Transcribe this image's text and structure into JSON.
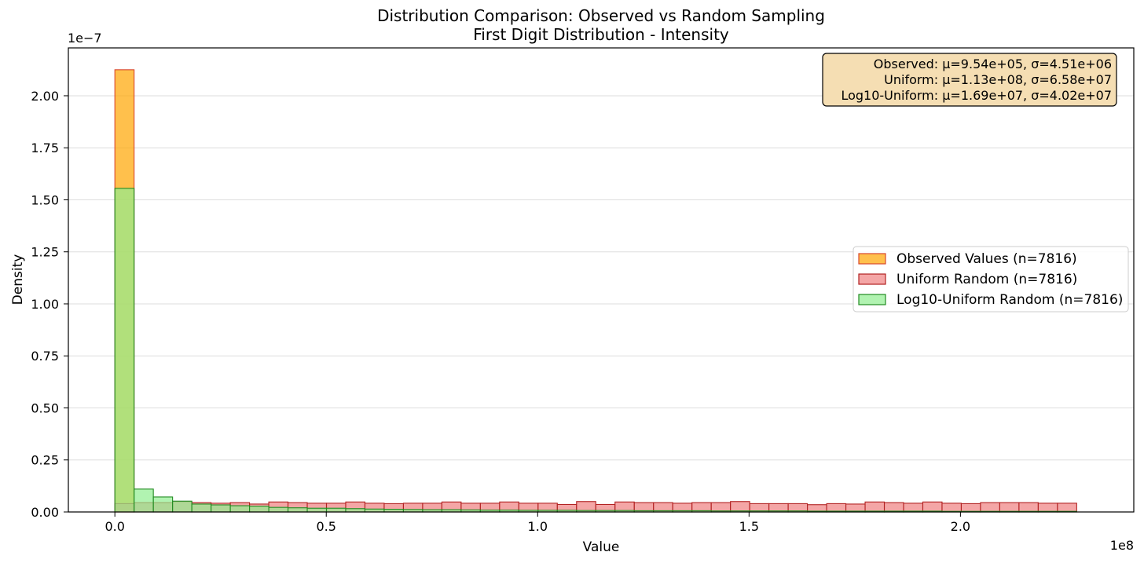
{
  "chart_data": {
    "type": "histogram",
    "title": "Distribution Comparison: Observed vs Random Sampling",
    "subtitle": "First Digit Distribution - Intensity",
    "xlabel": "Value",
    "ylabel": "Density",
    "x_offset_label": "1e8",
    "y_offset_label": "1e−7",
    "x_ticks": [
      0.0,
      0.5,
      1.0,
      1.5,
      2.0
    ],
    "x_tick_labels": [
      "0.0",
      "0.5",
      "1.0",
      "1.5",
      "2.0"
    ],
    "y_ticks": [
      0.0,
      0.25,
      0.5,
      0.75,
      1.0,
      1.25,
      1.5,
      1.75,
      2.0
    ],
    "y_tick_labels": [
      "0.00",
      "0.25",
      "0.50",
      "0.75",
      "1.00",
      "1.25",
      "1.50",
      "1.75",
      "2.00"
    ],
    "xlim": [
      -0.11,
      2.41
    ],
    "ylim": [
      0,
      2.23
    ],
    "x_unit_scale": "1e8",
    "y_unit_scale": "1e-7",
    "bin_start": 0.0,
    "bin_width": 0.0455,
    "grid": "y",
    "legend_placement": "center-right",
    "series": [
      {
        "name": "Observed Values (n=7816)",
        "fill": "#FFA500",
        "edge": "#D9482B",
        "values": [
          2.125,
          0,
          0,
          0,
          0,
          0,
          0,
          0,
          0,
          0,
          0,
          0,
          0,
          0,
          0,
          0,
          0,
          0,
          0,
          0,
          0,
          0,
          0,
          0,
          0,
          0,
          0,
          0,
          0,
          0,
          0,
          0,
          0,
          0,
          0,
          0,
          0,
          0,
          0,
          0,
          0,
          0,
          0,
          0,
          0,
          0,
          0,
          0,
          0,
          0
        ]
      },
      {
        "name": "Uniform Random (n=7816)",
        "fill": "#F08080",
        "edge": "#B22222",
        "values": [
          0.04,
          0.045,
          0.045,
          0.05,
          0.045,
          0.042,
          0.045,
          0.038,
          0.048,
          0.045,
          0.042,
          0.042,
          0.048,
          0.042,
          0.04,
          0.042,
          0.042,
          0.048,
          0.042,
          0.042,
          0.048,
          0.042,
          0.042,
          0.036,
          0.05,
          0.036,
          0.048,
          0.045,
          0.045,
          0.042,
          0.045,
          0.045,
          0.05,
          0.04,
          0.04,
          0.04,
          0.035,
          0.04,
          0.038,
          0.048,
          0.045,
          0.042,
          0.048,
          0.042,
          0.04,
          0.045,
          0.045,
          0.045,
          0.042,
          0.042
        ]
      },
      {
        "name": "Log10-Uniform Random (n=7816)",
        "fill": "#90EE90",
        "edge": "#228B22",
        "values": [
          1.555,
          0.11,
          0.072,
          0.052,
          0.038,
          0.034,
          0.03,
          0.028,
          0.022,
          0.02,
          0.018,
          0.018,
          0.016,
          0.014,
          0.013,
          0.012,
          0.011,
          0.011,
          0.01,
          0.009,
          0.009,
          0.008,
          0.008,
          0.008,
          0.007,
          0.007,
          0.007,
          0.006,
          0.006,
          0.006,
          0.006,
          0.005,
          0.005,
          0.005,
          0.005,
          0.005,
          0.004,
          0.004,
          0.004,
          0.004,
          0.004,
          0.004,
          0.004,
          0.003,
          0.003,
          0.003,
          0.003,
          0.003,
          0.003,
          0.003
        ]
      }
    ],
    "stats_box": {
      "lines": [
        "Observed: μ=9.54e+05, σ=4.51e+06",
        "Uniform: μ=1.13e+08, σ=6.58e+07",
        "Log10-Uniform: μ=1.69e+07, σ=4.02e+07"
      ],
      "background": "#F5DEB3"
    }
  }
}
